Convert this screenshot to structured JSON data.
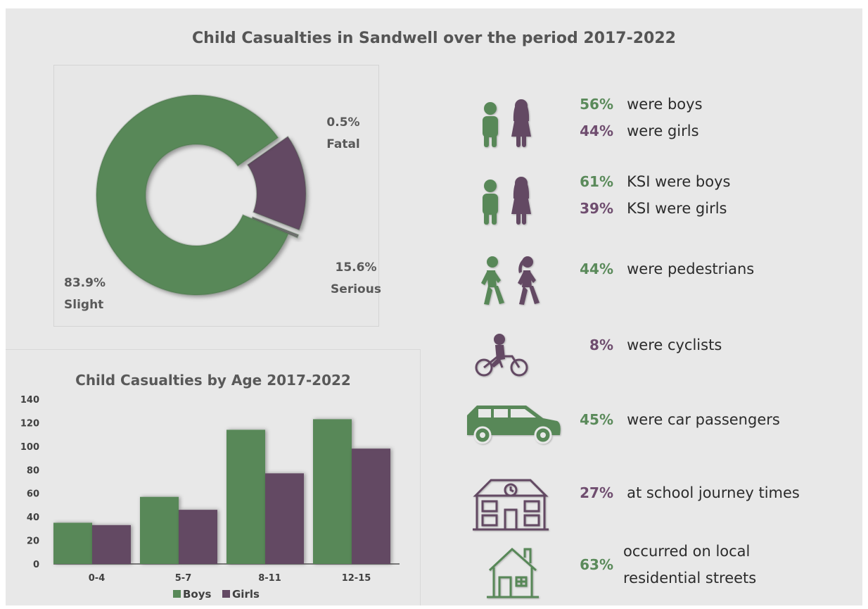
{
  "title": "Child Casualties in Sandwell over the period 2017-2022",
  "colors": {
    "boys": "#588858",
    "girls": "#644a64",
    "green_text": "#5a8a5a",
    "purple_text": "#6f4d6f"
  },
  "donut": {
    "labels": {
      "fatal_pct": "0.5%",
      "fatal_name": "Fatal",
      "serious_pct": "15.6%",
      "serious_name": "Serious",
      "slight_pct": "83.9%",
      "slight_name": "Slight"
    }
  },
  "chart_data": [
    {
      "type": "pie",
      "categories": [
        "Slight",
        "Serious",
        "Fatal"
      ],
      "values": [
        83.9,
        15.6,
        0.5
      ],
      "title": ""
    },
    {
      "type": "bar",
      "title": "Child Casualties by Age 2017-2022",
      "categories": [
        "0-4",
        "5-7",
        "8-11",
        "12-15"
      ],
      "series": [
        {
          "name": "Boys",
          "values": [
            35,
            57,
            114,
            123
          ]
        },
        {
          "name": "Girls",
          "values": [
            33,
            46,
            77,
            98
          ]
        }
      ],
      "ylim": [
        0,
        140
      ],
      "yticks": [
        "0",
        "20",
        "40",
        "60",
        "80",
        "100",
        "120",
        "140"
      ],
      "legend": "bottom",
      "grid": false,
      "xlabel": "",
      "ylabel": ""
    }
  ],
  "stats": {
    "boys_pct": "56%",
    "boys_text": "were boys",
    "girls_pct": "44%",
    "girls_text": "were girls",
    "ksi_boys_pct": "61%",
    "ksi_boys_text": "KSI were boys",
    "ksi_girls_pct": "39%",
    "ksi_girls_text": "KSI were girls",
    "pedestrians_pct": "44%",
    "pedestrians_text": "were pedestrians",
    "cyclists_pct": "8%",
    "cyclists_text": "were cyclists",
    "car_pct": "45%",
    "car_text": "were car passengers",
    "school_pct": "27%",
    "school_text": "at school journey times",
    "local_pct": "63%",
    "local_text_1": "occurred on local",
    "local_text_2": "residential streets"
  },
  "icons": [
    "boy-icon",
    "girl-icon",
    "boy-walking-icon",
    "girl-walking-icon",
    "cyclist-icon",
    "car-icon",
    "school-icon",
    "house-icon"
  ]
}
